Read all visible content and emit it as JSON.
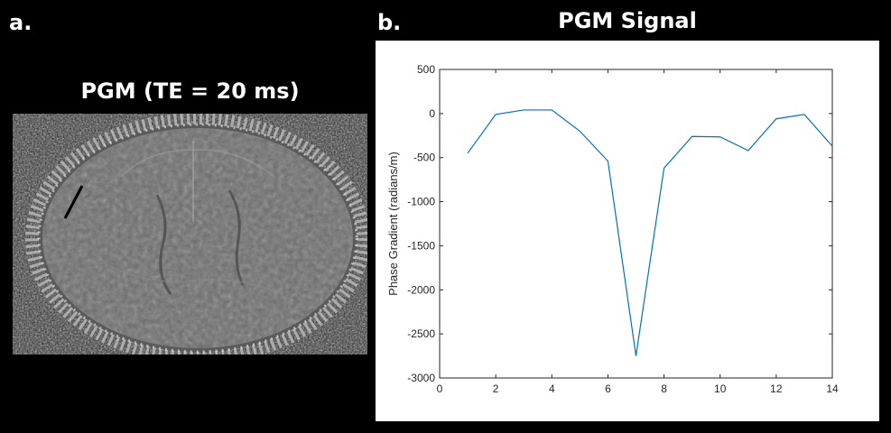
{
  "panel_a": {
    "letter": "a.",
    "title": "PGM (TE = 20 ms)"
  },
  "panel_b": {
    "letter": "b.",
    "title": "PGM Signal"
  },
  "chart_data": {
    "type": "line",
    "title": "PGM Signal",
    "xlabel": "",
    "ylabel": "Phase Gradient (radians/m)",
    "xlim": [
      0,
      14
    ],
    "ylim": [
      -3000,
      500
    ],
    "xticks": [
      0,
      2,
      4,
      6,
      8,
      10,
      12,
      14
    ],
    "yticks": [
      500,
      0,
      -500,
      -1000,
      -1500,
      -2000,
      -2500,
      -3000
    ],
    "grid": false,
    "series": [
      {
        "color": "#0072BD",
        "x": [
          1,
          2,
          3,
          4,
          5,
          6,
          7,
          8,
          9,
          10,
          11,
          12,
          13,
          14
        ],
        "y": [
          -450,
          -10,
          40,
          40,
          -200,
          -540,
          -2750,
          -620,
          -260,
          -265,
          -420,
          -60,
          -10,
          -370
        ]
      }
    ]
  }
}
